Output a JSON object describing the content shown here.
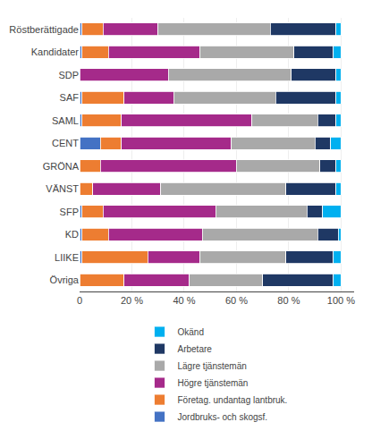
{
  "chart_data": {
    "type": "bar",
    "orientation": "horizontal",
    "stacked": true,
    "categories": [
      "Röstberättigade",
      "Kandidater",
      "SDP",
      "SAF",
      "SAML",
      "CENT",
      "GRÖNA",
      "VÄNST",
      "SFP",
      "KD",
      "LIIKE",
      "Övriga"
    ],
    "series": [
      {
        "name": "Jordbruks- och skogsf.",
        "color": "#4472C4",
        "values": [
          1,
          1,
          0,
          1,
          1,
          8,
          0,
          0,
          1,
          1,
          1,
          0
        ]
      },
      {
        "name": "Företag. undantag lantbruk.",
        "color": "#ED7D31",
        "values": [
          8,
          10,
          0,
          16,
          15,
          8,
          8,
          5,
          8,
          10,
          25,
          17
        ]
      },
      {
        "name": "Högre tjänstemän",
        "color": "#A52A8A",
        "values": [
          21,
          35,
          34,
          19,
          50,
          42,
          52,
          26,
          43,
          36,
          20,
          25
        ]
      },
      {
        "name": "Lägre tjänstemän",
        "color": "#A9A9A9",
        "values": [
          43,
          36,
          47,
          39,
          25,
          32,
          32,
          48,
          35,
          44,
          33,
          28
        ]
      },
      {
        "name": "Arbetare",
        "color": "#1F3864",
        "values": [
          25,
          15,
          17,
          23,
          7,
          6,
          6,
          19,
          6,
          8,
          18,
          27
        ]
      },
      {
        "name": "Okänd",
        "color": "#00B0F0",
        "values": [
          2,
          3,
          2,
          2,
          2,
          4,
          2,
          2,
          7,
          1,
          3,
          3
        ]
      }
    ],
    "xlim": [
      0,
      105
    ],
    "xticks": [
      0,
      {
        "value": 20,
        "label": "20 %"
      },
      {
        "value": 40,
        "label": "40 %"
      },
      {
        "value": 60,
        "label": "60 %"
      },
      {
        "value": 80,
        "label": "80 %"
      },
      {
        "value": 100,
        "label": "100 %"
      }
    ],
    "grid": true,
    "legend": "bottom"
  }
}
